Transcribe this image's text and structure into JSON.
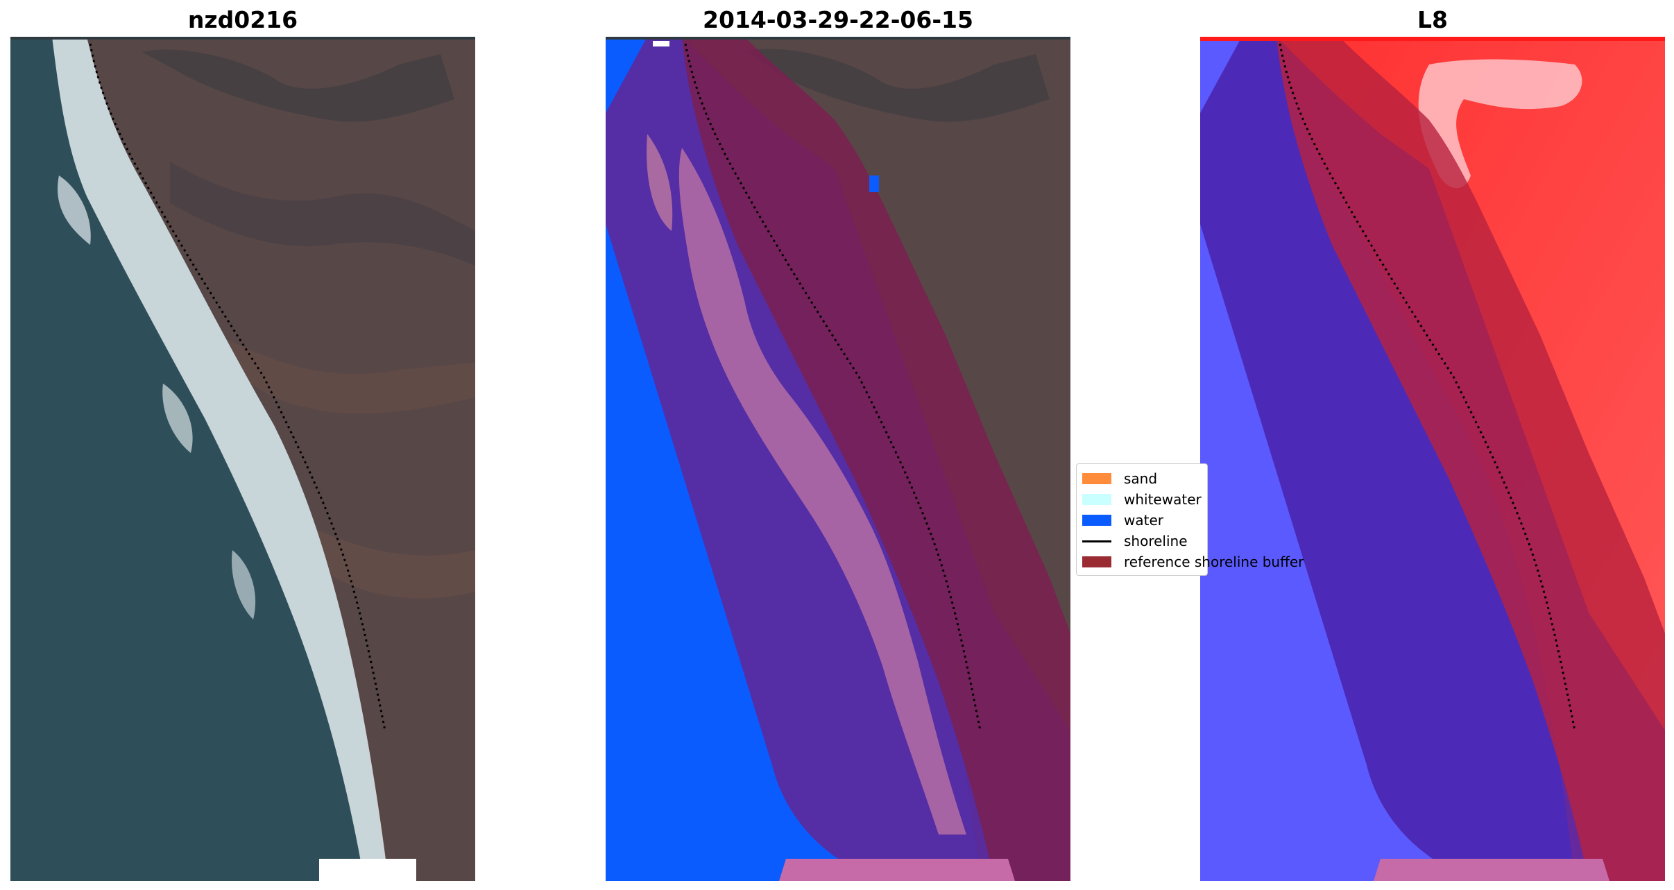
{
  "panels": [
    {
      "title": "nzd0216"
    },
    {
      "title": "2014-03-29-22-06-15"
    },
    {
      "title": "L8"
    }
  ],
  "legend": {
    "items": [
      {
        "label": "sand",
        "color": "#ff8c3a",
        "kind": "patch"
      },
      {
        "label": "whitewater",
        "color": "#c9ffff",
        "kind": "patch"
      },
      {
        "label": "water",
        "color": "#0a5cff",
        "kind": "patch"
      },
      {
        "label": "shoreline",
        "color": "#000000",
        "kind": "line"
      },
      {
        "label": "reference shoreline buffer",
        "color": "#9a2b33",
        "kind": "patch"
      }
    ]
  },
  "colors": {
    "ocean": "#2e4f59",
    "land": "#574646",
    "surf": "#dde6ea",
    "water_class": "#0a5cff",
    "buffer_overlay": "#7a2050",
    "water_in_buffer": "#5a2aa0",
    "index_water": "#5a5aff",
    "index_land": "#ff3a3a"
  }
}
